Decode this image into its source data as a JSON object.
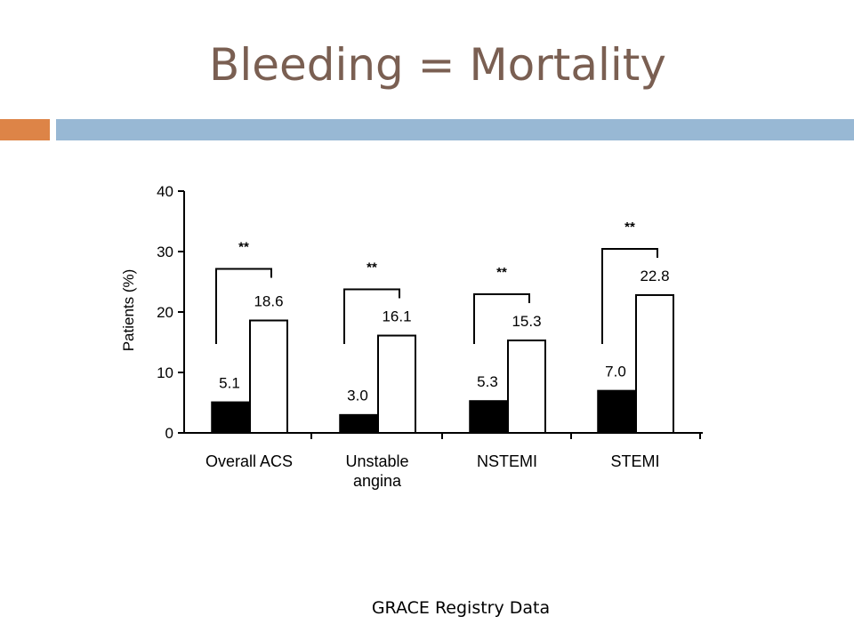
{
  "slide": {
    "title": "Bleeding = Mortality",
    "footnote": "GRACE Registry Data"
  },
  "colors": {
    "title": "#7a5f52",
    "accent_orange": "#dd8447",
    "accent_blue": "#98b8d4",
    "bar_no_bleeding": "#000000",
    "bar_bleeding": "#ffffff"
  },
  "chart_data": {
    "type": "bar",
    "title": "",
    "xlabel": "",
    "ylabel": "Patients (%)",
    "ylim": [
      0,
      40
    ],
    "yticks": [
      0,
      10,
      20,
      30,
      40
    ],
    "categories": [
      [
        "Overall ACS"
      ],
      [
        "Unstable",
        "angina"
      ],
      [
        "NSTEMI"
      ],
      [
        "STEMI"
      ]
    ],
    "series": [
      {
        "color": "#000000",
        "values": [
          5.1,
          3.0,
          5.3,
          7.0
        ]
      },
      {
        "color": "#ffffff",
        "values": [
          18.6,
          16.1,
          15.3,
          22.8
        ]
      }
    ],
    "data_labels": [
      [
        "5.1",
        "3.0",
        "5.3",
        "7.0"
      ],
      [
        "18.6",
        "16.1",
        "15.3",
        "22.8"
      ]
    ],
    "significance_marker": "**",
    "grid": false,
    "legend": "none"
  }
}
